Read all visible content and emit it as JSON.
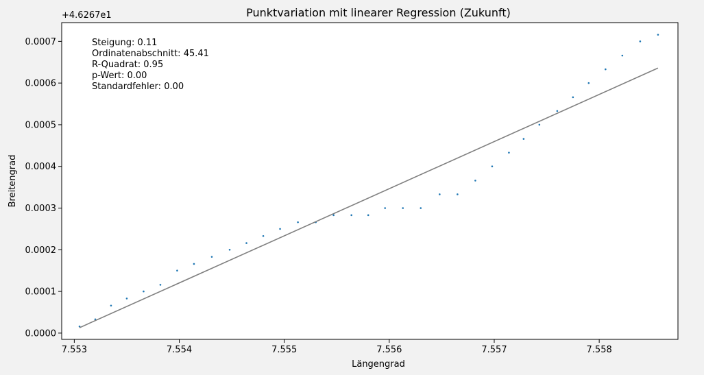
{
  "chart_data": {
    "type": "scatter",
    "title": "Punktvariation mit linearer Regression (Zukunft)",
    "xlabel": "Längengrad",
    "ylabel": "Breitengrad",
    "y_offset_label": "+4.6267e1",
    "xlim": [
      7.55288,
      7.55875
    ],
    "ylim": [
      -1.5e-05,
      0.000745
    ],
    "x_ticks": [
      {
        "value": 7.553,
        "label": "7.553"
      },
      {
        "value": 7.554,
        "label": "7.554"
      },
      {
        "value": 7.555,
        "label": "7.555"
      },
      {
        "value": 7.556,
        "label": "7.556"
      },
      {
        "value": 7.557,
        "label": "7.557"
      },
      {
        "value": 7.558,
        "label": "7.558"
      }
    ],
    "y_ticks": [
      {
        "value": 0.0,
        "label": "0.0000"
      },
      {
        "value": 0.0001,
        "label": "0.0001"
      },
      {
        "value": 0.0002,
        "label": "0.0002"
      },
      {
        "value": 0.0003,
        "label": "0.0003"
      },
      {
        "value": 0.0004,
        "label": "0.0004"
      },
      {
        "value": 0.0005,
        "label": "0.0005"
      },
      {
        "value": 0.0006,
        "label": "0.0006"
      },
      {
        "value": 0.0007,
        "label": "0.0007"
      }
    ],
    "annotation": [
      "Steigung: 0.11",
      "Ordinatenabschnitt: 45.41",
      "R-Quadrat: 0.95",
      "p-Wert: 0.00",
      "Standardfehler: 0.00"
    ],
    "series": [
      {
        "kind": "scatter",
        "color": "#1f77b4",
        "points": [
          [
            7.55305,
            1.6e-05
          ],
          [
            7.5532,
            3.3e-05
          ],
          [
            7.55335,
            6.6e-05
          ],
          [
            7.5535,
            8.3e-05
          ],
          [
            7.55366,
            0.0001
          ],
          [
            7.55382,
            0.000116
          ],
          [
            7.55398,
            0.00015
          ],
          [
            7.55414,
            0.000166
          ],
          [
            7.55431,
            0.000183
          ],
          [
            7.55448,
            0.0002
          ],
          [
            7.55464,
            0.000216
          ],
          [
            7.5548,
            0.000233
          ],
          [
            7.55496,
            0.00025
          ],
          [
            7.55513,
            0.000266
          ],
          [
            7.5553,
            0.000266
          ],
          [
            7.55547,
            0.000283
          ],
          [
            7.55564,
            0.000283
          ],
          [
            7.5558,
            0.000283
          ],
          [
            7.55596,
            0.0003
          ],
          [
            7.55613,
            0.0003
          ],
          [
            7.5563,
            0.0003
          ],
          [
            7.55648,
            0.000333
          ],
          [
            7.55665,
            0.000333
          ],
          [
            7.55682,
            0.000366
          ],
          [
            7.55698,
            0.0004
          ],
          [
            7.55714,
            0.000433
          ],
          [
            7.55728,
            0.000466
          ],
          [
            7.55743,
            0.0005
          ],
          [
            7.5576,
            0.000533
          ],
          [
            7.55775,
            0.000566
          ],
          [
            7.5579,
            0.0006
          ],
          [
            7.55806,
            0.000633
          ],
          [
            7.55822,
            0.000666
          ],
          [
            7.55839,
            0.0007
          ],
          [
            7.55856,
            0.000716
          ]
        ]
      },
      {
        "kind": "line",
        "color": "#808080",
        "points": [
          [
            7.55305,
            1.3e-05
          ],
          [
            7.55856,
            0.000636
          ]
        ]
      }
    ]
  }
}
